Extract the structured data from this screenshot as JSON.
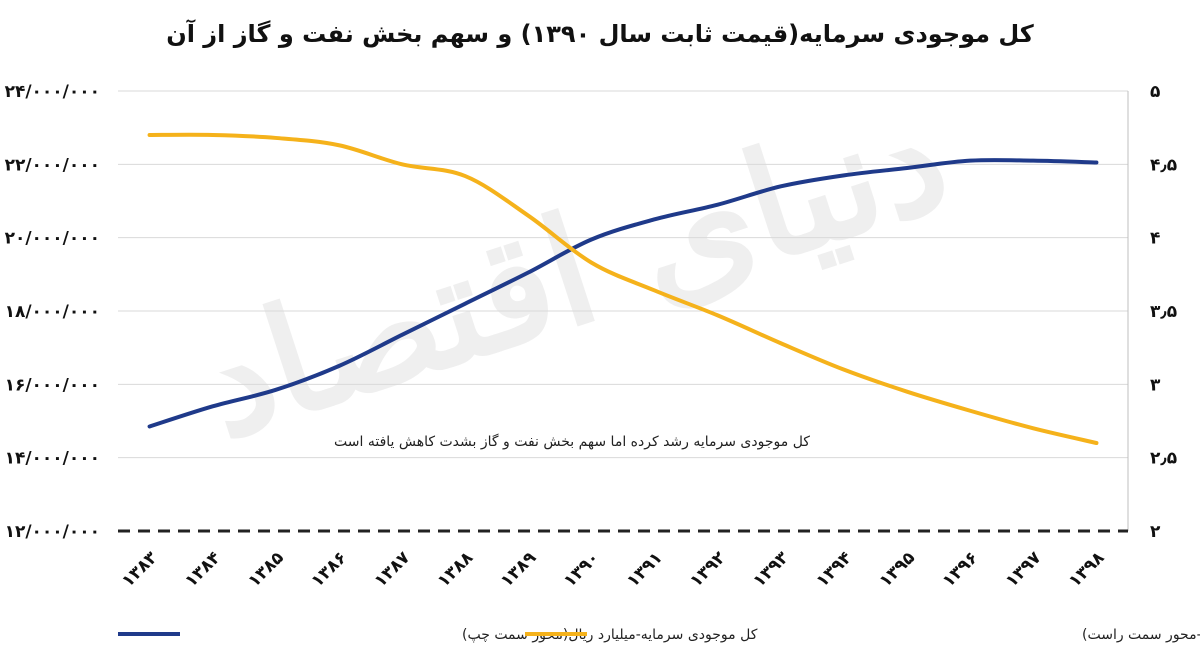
{
  "chart_data": {
    "type": "line",
    "title": "کل موجودی سرمایه(قیمت ثابت سال ۱۳۹۰) و سهم بخش نفت و گاز از آن",
    "categories": [
      "۱۳۸۳",
      "۱۳۸۴",
      "۱۳۸۵",
      "۱۳۸۶",
      "۱۳۸۷",
      "۱۳۸۸",
      "۱۳۸۹",
      "۱۳۹۰",
      "۱۳۹۱",
      "۱۳۹۲",
      "۱۳۹۳",
      "۱۳۹۴",
      "۱۳۹۵",
      "۱۳۹۶",
      "۱۳۹۷",
      "۱۳۹۸"
    ],
    "left_axis": {
      "ylim": [
        12000000,
        24000000
      ],
      "ticks": [
        "۱۲/۰۰۰/۰۰۰",
        "۱۴/۰۰۰/۰۰۰",
        "۱۶/۰۰۰/۰۰۰",
        "۱۸/۰۰۰/۰۰۰",
        "۲۰/۰۰۰/۰۰۰",
        "۲۲/۰۰۰/۰۰۰",
        "۲۴/۰۰۰/۰۰۰"
      ]
    },
    "right_axis": {
      "ylim": [
        2,
        5
      ],
      "ticks": [
        "۲",
        "۲٫۵",
        "۳",
        "۳٫۵",
        "۴",
        "۴٫۵",
        "۵"
      ]
    },
    "series": [
      {
        "name": "کل موجودی سرمایه-میلیارد ریال(محور سمت چپ)",
        "axis": "left",
        "color": "#1f3a8a",
        "values": [
          14850000,
          15400000,
          15850000,
          16500000,
          17350000,
          18200000,
          19050000,
          19950000,
          20500000,
          20900000,
          21400000,
          21700000,
          21900000,
          22100000,
          22100000,
          22050000
        ]
      },
      {
        "name": "سهم موجودی سرمایه بخش نفت و گاز از کل موجودی سرمایه(درصد-محور سمت راست)",
        "axis": "right",
        "color": "#f5b21b",
        "values": [
          4.7,
          4.7,
          4.68,
          4.63,
          4.5,
          4.42,
          4.15,
          3.83,
          3.64,
          3.47,
          3.28,
          3.1,
          2.95,
          2.82,
          2.7,
          2.6
        ]
      }
    ],
    "annotation": "کل موجودی سرمایه رشد کرده اما سهم بخش نفت و گاز بشدت کاهش یافته است",
    "watermark": "دنیای اقتصاد",
    "grid": true,
    "legend_position": "bottom"
  }
}
